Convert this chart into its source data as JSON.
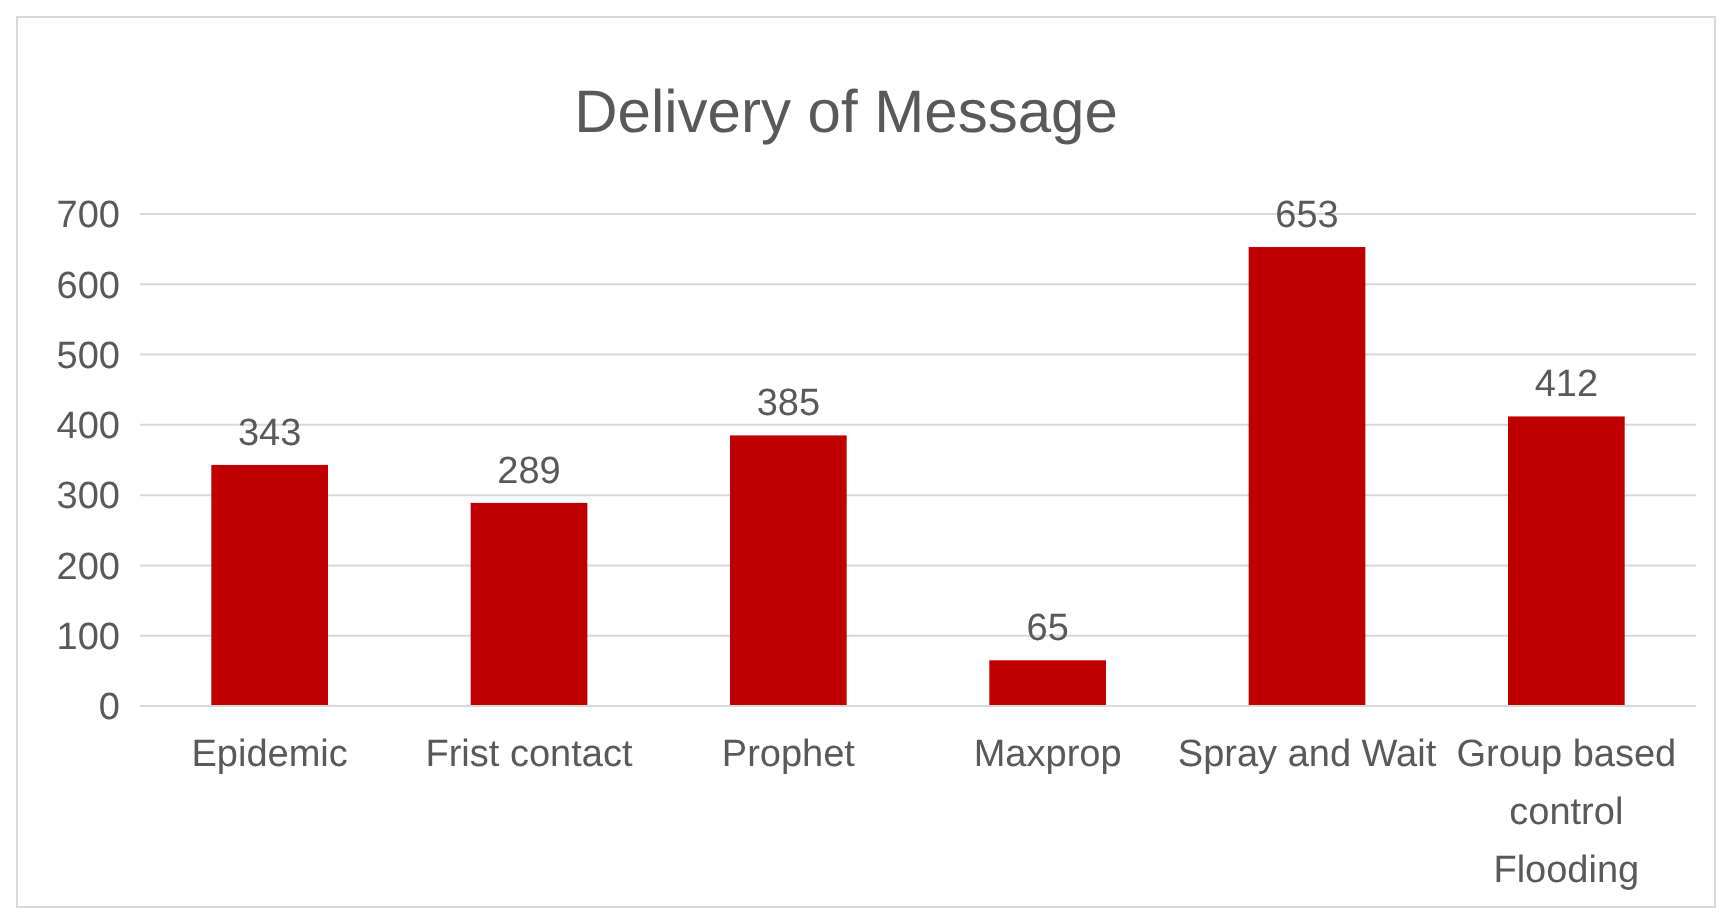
{
  "chart_data": {
    "type": "bar",
    "title": "Delivery of Message",
    "categories": [
      "Epidemic",
      "Frist contact",
      "Prophet",
      "Maxprop",
      "Spray and Wait",
      "Group based control Flooding"
    ],
    "values": [
      343,
      289,
      385,
      65,
      653,
      412
    ],
    "color": "#c00000",
    "ylim": [
      0,
      700
    ],
    "yticks": [
      0,
      100,
      200,
      300,
      400,
      500,
      600,
      700
    ],
    "grid": "y",
    "data_labels": true
  }
}
